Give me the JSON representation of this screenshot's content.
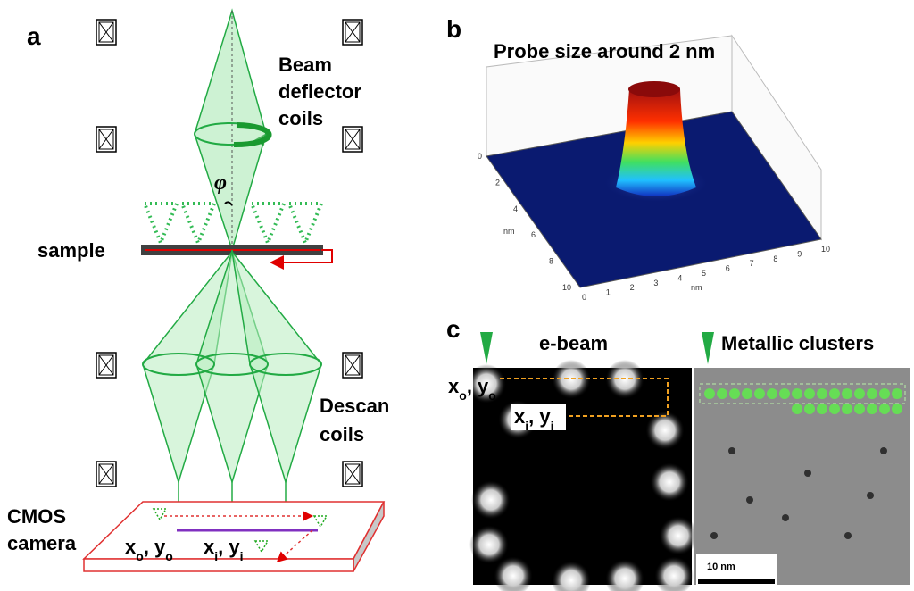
{
  "panels": {
    "a": "a",
    "b": "b",
    "c": "c"
  },
  "panel_a": {
    "beam_deflector": [
      "Beam",
      "deflector",
      "coils"
    ],
    "angle": "φ",
    "sample": "sample",
    "descan": [
      "Descan",
      "coils"
    ],
    "camera": [
      "CMOS",
      "camera"
    ],
    "coord_o": [
      "x",
      "o",
      ", y",
      "o"
    ],
    "coord_i": [
      "x",
      "i",
      ", y",
      "i"
    ]
  },
  "panel_b": {
    "title": "Probe size around 2 nm",
    "y_axis": {
      "label": "nm",
      "ticks": [
        0,
        2,
        4,
        6,
        8,
        10
      ]
    },
    "x_axis": {
      "label": "nm",
      "ticks": [
        0,
        1,
        2,
        3,
        4,
        5,
        6,
        7,
        8,
        9,
        10
      ]
    }
  },
  "panel_c": {
    "ebeam": "e-beam",
    "clusters": "Metallic clusters",
    "coord_o": [
      "x",
      "o",
      ", y",
      "o"
    ],
    "coord_i": [
      "x",
      "i",
      ", y",
      "i"
    ],
    "scale_bar": "10 nm"
  }
}
